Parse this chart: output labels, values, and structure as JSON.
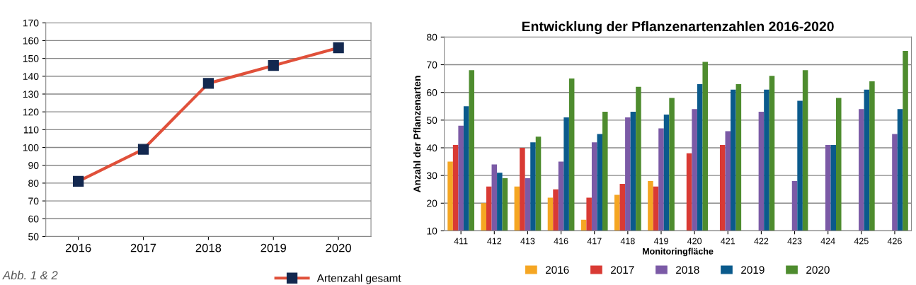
{
  "chart_data": [
    {
      "type": "line",
      "categories": [
        "2016",
        "2017",
        "2018",
        "2019",
        "2020"
      ],
      "series": [
        {
          "name": "Artenzahl gesamt",
          "color": "#e0503a",
          "values": [
            81,
            99,
            136,
            146,
            156
          ]
        }
      ],
      "marker": "square",
      "line_style": "solid",
      "ylim": [
        50,
        170
      ],
      "yticks": [
        50,
        60,
        70,
        80,
        90,
        100,
        110,
        120,
        130,
        140,
        150,
        160,
        170
      ],
      "grid": "y",
      "legend": "bottom",
      "annotations": [
        "Abb. 1 & 2"
      ]
    },
    {
      "type": "bar",
      "title": "Entwicklung der Pflanzenartenzahlen 2016-2020",
      "xlabel": "Monitoringfläche",
      "ylabel": "Anzahl der Pflanzenarten",
      "categories": [
        "411",
        "412",
        "413",
        "416",
        "417",
        "418",
        "419",
        "420",
        "421",
        "422",
        "423",
        "424",
        "425",
        "426"
      ],
      "series": [
        {
          "name": "2016",
          "color": "#f5a623",
          "values": [
            35,
            20,
            26,
            22,
            14,
            23,
            28,
            null,
            null,
            null,
            null,
            null,
            null,
            null
          ]
        },
        {
          "name": "2017",
          "color": "#d93a34",
          "values": [
            41,
            26,
            40,
            25,
            22,
            27,
            26,
            38,
            41,
            null,
            null,
            null,
            null,
            null
          ]
        },
        {
          "name": "2018",
          "color": "#7b5aa6",
          "values": [
            48,
            34,
            29,
            35,
            42,
            51,
            47,
            54,
            46,
            53,
            28,
            41,
            54,
            45
          ]
        },
        {
          "name": "2019",
          "color": "#0a5a8c",
          "values": [
            55,
            31,
            42,
            51,
            45,
            53,
            52,
            63,
            61,
            61,
            57,
            41,
            61,
            54
          ]
        },
        {
          "name": "2020",
          "color": "#4e8c2e",
          "values": [
            68,
            29,
            44,
            65,
            53,
            62,
            58,
            71,
            63,
            66,
            68,
            58,
            64,
            75
          ]
        }
      ],
      "ylim": [
        10,
        80
      ],
      "yticks": [
        10,
        20,
        30,
        40,
        50,
        60,
        70,
        80
      ],
      "grid": "y",
      "legend": "bottom"
    }
  ]
}
